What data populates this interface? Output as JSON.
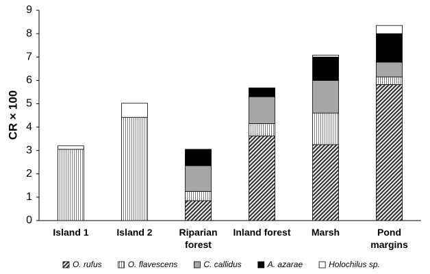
{
  "chart_data": {
    "type": "stacked_bar",
    "y_label": "CR × 100",
    "categories": [
      "Island 1",
      "Island 2",
      "Riparian\nforest",
      "Inland forest",
      "Marsh",
      "Pond\nmargins"
    ],
    "series": [
      {
        "name": "O. rufus",
        "color": "#333333",
        "pattern": "diagonal",
        "values": [
          0,
          0,
          0.85,
          3.62,
          3.25,
          5.82
        ]
      },
      {
        "name": "O. flavescens",
        "color": "#777777",
        "pattern": "vertical",
        "values": [
          3.05,
          4.42,
          0.4,
          0.53,
          1.35,
          0.33
        ]
      },
      {
        "name": "C. callidus",
        "color": "#a6a6a6",
        "pattern": "solid",
        "values": [
          0,
          0,
          1.1,
          1.15,
          1.4,
          0.63
        ]
      },
      {
        "name": "A. azarae",
        "color": "#000000",
        "pattern": "solid",
        "values": [
          0,
          0,
          0.7,
          0.38,
          1.0,
          1.22
        ]
      },
      {
        "name": "Holochilus sp.",
        "color": "#ffffff",
        "pattern": "solid",
        "values": [
          0.15,
          0.6,
          0,
          0,
          0.08,
          0.35
        ]
      }
    ],
    "ylim": [
      0,
      9
    ],
    "yticks": [
      0,
      1,
      2,
      3,
      4,
      5,
      6,
      7,
      8,
      9
    ],
    "legend": "bottom"
  }
}
